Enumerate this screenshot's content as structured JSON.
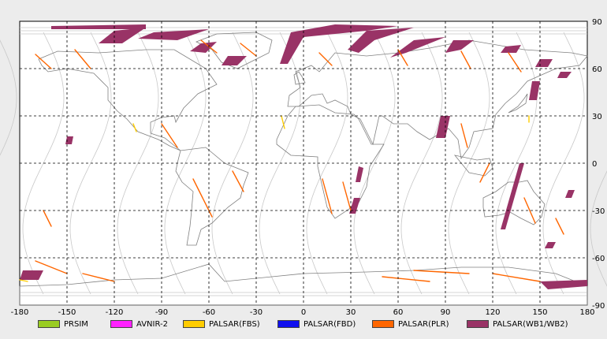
{
  "map": {
    "lon_range": [
      -180,
      180
    ],
    "lat_range": [
      -90,
      90
    ],
    "lon_ticks": [
      -180,
      -150,
      -120,
      -90,
      -60,
      -30,
      0,
      30,
      60,
      90,
      120,
      150,
      180
    ],
    "lat_ticks": [
      90,
      60,
      30,
      0,
      -30,
      -60,
      -90
    ],
    "grid": "dashed",
    "colors": {
      "background": "#ffffff",
      "grid": "#000000",
      "coast": "#808080",
      "orbit": "#c8c8c8"
    }
  },
  "legend": {
    "placement": "bottom",
    "items": [
      {
        "label": "PRSIM",
        "color": "#99cc22"
      },
      {
        "label": "AVNIR-2",
        "color": "#ff22ff"
      },
      {
        "label": "PALSAR(FBS)",
        "color": "#ffcc00"
      },
      {
        "label": "PALSAR(FBD)",
        "color": "#1111ee"
      },
      {
        "label": "PALSAR(PLR)",
        "color": "#ff6600"
      },
      {
        "label": "PALSAR(WB1/WB2)",
        "color": "#993366"
      }
    ]
  }
}
